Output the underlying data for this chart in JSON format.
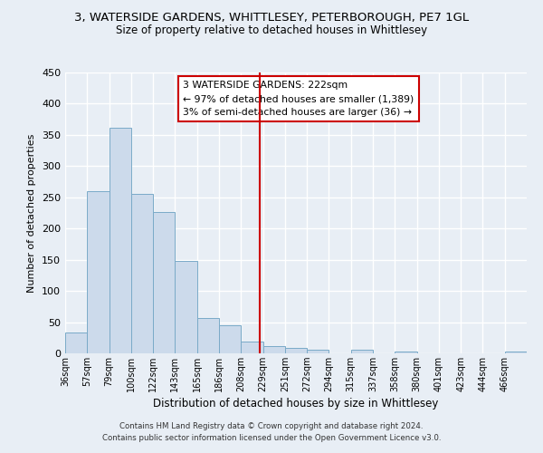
{
  "title": "3, WATERSIDE GARDENS, WHITTLESEY, PETERBOROUGH, PE7 1GL",
  "subtitle": "Size of property relative to detached houses in Whittlesey",
  "xlabel": "Distribution of detached houses by size in Whittlesey",
  "ylabel": "Number of detached properties",
  "bin_labels": [
    "36sqm",
    "57sqm",
    "79sqm",
    "100sqm",
    "122sqm",
    "143sqm",
    "165sqm",
    "186sqm",
    "208sqm",
    "229sqm",
    "251sqm",
    "272sqm",
    "294sqm",
    "315sqm",
    "337sqm",
    "358sqm",
    "380sqm",
    "401sqm",
    "423sqm",
    "444sqm",
    "466sqm"
  ],
  "bar_heights": [
    33,
    260,
    362,
    256,
    226,
    148,
    57,
    45,
    19,
    12,
    9,
    6,
    0,
    6,
    0,
    3,
    0,
    0,
    0,
    0,
    3
  ],
  "bar_color": "#ccdaeb",
  "bar_edge_color": "#7aaac8",
  "vline_x": 8.86,
  "vline_color": "#cc0000",
  "ylim": [
    0,
    450
  ],
  "yticks": [
    0,
    50,
    100,
    150,
    200,
    250,
    300,
    350,
    400,
    450
  ],
  "annotation_title": "3 WATERSIDE GARDENS: 222sqm",
  "annotation_line1": "← 97% of detached houses are smaller (1,389)",
  "annotation_line2": "3% of semi-detached houses are larger (36) →",
  "footer1": "Contains HM Land Registry data © Crown copyright and database right 2024.",
  "footer2": "Contains public sector information licensed under the Open Government Licence v3.0.",
  "bg_color": "#e8eef5",
  "grid_color": "#ffffff"
}
